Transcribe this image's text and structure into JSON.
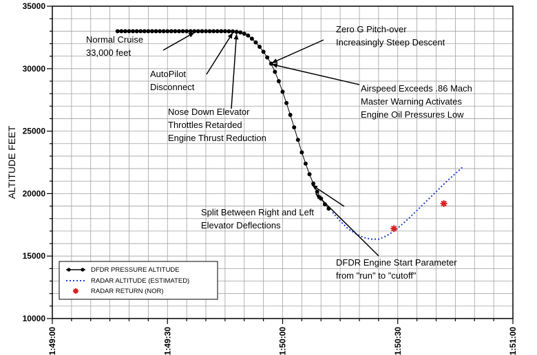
{
  "chart_data": {
    "type": "scatter",
    "ylabel": "ALTITUDE FEET",
    "xlim_seconds": [
      0,
      120
    ],
    "ylim": [
      10000,
      35000
    ],
    "grid": true,
    "legend_position": "bottom-left",
    "x_tick_labels": [
      "1:49:00",
      "1:49:30",
      "1:50:00",
      "1:50:30",
      "1:51:00"
    ],
    "y_tick_labels": [
      "10000",
      "15000",
      "20000",
      "25000",
      "30000",
      "35000"
    ],
    "series": [
      {
        "name": "DFDR PRESSURE ALTITUDE",
        "style": "black-dot-line",
        "color": "#000000",
        "points": [
          [
            17,
            33000
          ],
          [
            18,
            33000
          ],
          [
            19,
            33000
          ],
          [
            20,
            33000
          ],
          [
            21,
            33000
          ],
          [
            22,
            33000
          ],
          [
            23,
            33000
          ],
          [
            24,
            33000
          ],
          [
            25,
            33000
          ],
          [
            26,
            33000
          ],
          [
            27,
            33000
          ],
          [
            28,
            33000
          ],
          [
            29,
            33000
          ],
          [
            30,
            33000
          ],
          [
            31,
            33000
          ],
          [
            32,
            33000
          ],
          [
            33,
            33000
          ],
          [
            34,
            33000
          ],
          [
            35,
            33000
          ],
          [
            36,
            33000
          ],
          [
            37,
            33000
          ],
          [
            38,
            33000
          ],
          [
            39,
            33000
          ],
          [
            40,
            33000
          ],
          [
            41,
            33000
          ],
          [
            42,
            33000
          ],
          [
            43,
            33000
          ],
          [
            44,
            33000
          ],
          [
            45,
            33000
          ],
          [
            46,
            32990
          ],
          [
            47,
            32980
          ],
          [
            48,
            32950
          ],
          [
            49,
            32900
          ],
          [
            50,
            32800
          ],
          [
            51,
            32650
          ],
          [
            52,
            32400
          ],
          [
            53,
            32100
          ],
          [
            54,
            31750
          ],
          [
            55,
            31350
          ],
          [
            56,
            30900
          ],
          [
            57,
            30400
          ],
          [
            58,
            29750
          ],
          [
            59,
            29000
          ],
          [
            60,
            28150
          ],
          [
            61,
            27250
          ],
          [
            62,
            26300
          ],
          [
            63,
            25300
          ],
          [
            64,
            24300
          ],
          [
            65,
            23300
          ],
          [
            66,
            22400
          ],
          [
            67,
            21550
          ],
          [
            68,
            20800
          ],
          [
            69,
            20150
          ],
          [
            70,
            19600
          ],
          [
            71,
            19150
          ],
          [
            72,
            18800
          ]
        ]
      },
      {
        "name": "RADAR ALTITUDE (ESTIMATED)",
        "style": "blue-dotted",
        "color": "#1f3fd6",
        "points": [
          [
            73,
            18500
          ],
          [
            75,
            17800
          ],
          [
            77,
            17200
          ],
          [
            79,
            16800
          ],
          [
            81,
            16500
          ],
          [
            83,
            16350
          ],
          [
            85,
            16350
          ],
          [
            87,
            16600
          ],
          [
            89,
            17000
          ],
          [
            91,
            17500
          ],
          [
            93,
            18050
          ],
          [
            95,
            18650
          ],
          [
            97,
            19250
          ],
          [
            99,
            19850
          ],
          [
            101,
            20450
          ],
          [
            103,
            21050
          ],
          [
            105,
            21600
          ],
          [
            107,
            22150
          ]
        ]
      },
      {
        "name": "RADAR RETURN (NOR)",
        "style": "red-asterisk",
        "color": "#d62020",
        "points": [
          [
            89,
            17200
          ],
          [
            102,
            19200
          ]
        ]
      }
    ],
    "annotations": [
      {
        "lines": [
          "Normal Cruise",
          "33,000 feet"
        ]
      },
      {
        "lines": [
          "AutoPilot",
          "Disconnect"
        ]
      },
      {
        "lines": [
          "Nose Down Elevator",
          "Throttles Retarded",
          "Engine Thrust Reduction"
        ]
      },
      {
        "lines": [
          "Zero G Pitch-over",
          "Increasingly Steep Descent"
        ]
      },
      {
        "lines": [
          "Airspeed Exceeds .86 Mach",
          "Master Warning Activates",
          "Engine Oil Pressures Low"
        ]
      },
      {
        "lines": [
          "Split Between Right and Left",
          "Elevator Deflections"
        ]
      },
      {
        "lines": [
          "DFDR Engine Start Parameter",
          "from \"run\" to \"cutoff\""
        ]
      }
    ]
  }
}
